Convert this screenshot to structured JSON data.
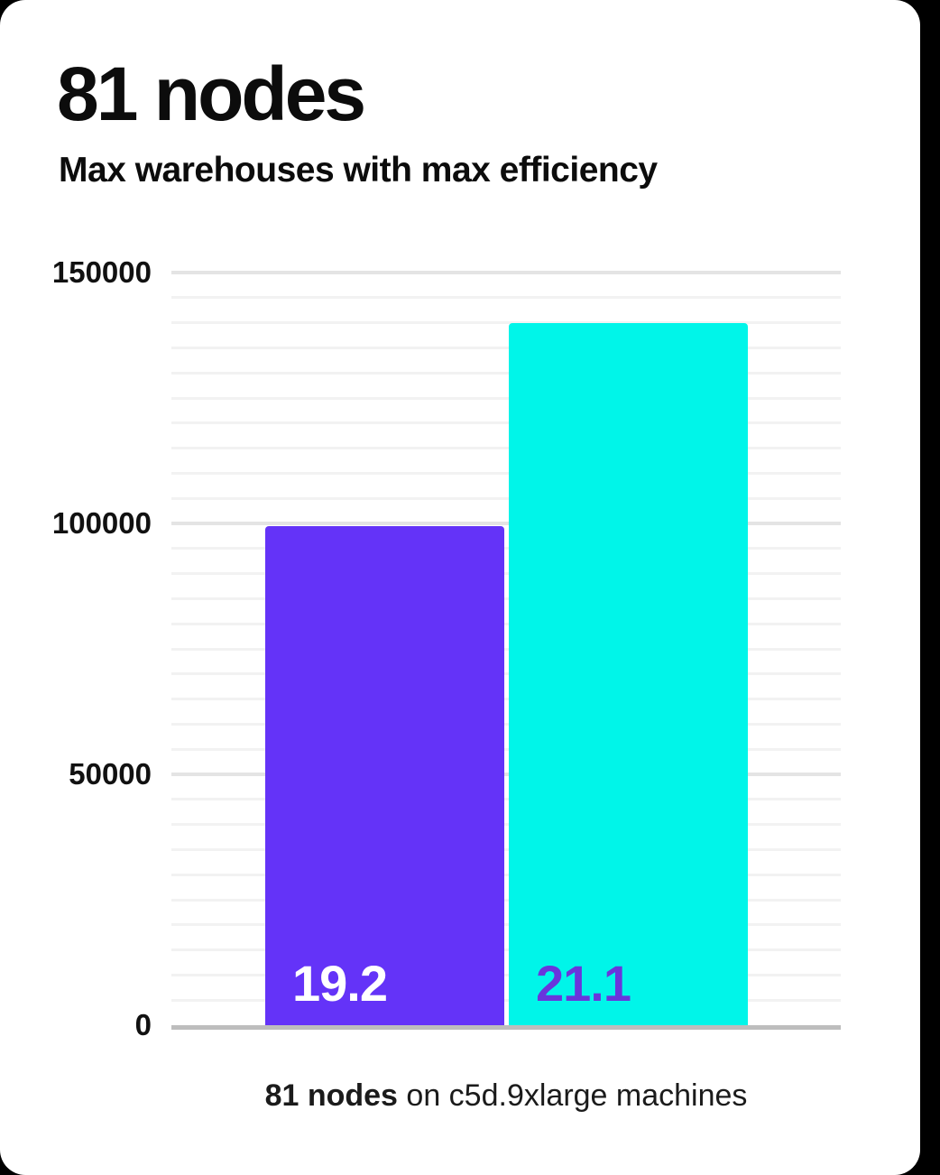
{
  "page": {
    "background_color": "#000000",
    "card_color": "#ffffff"
  },
  "header": {
    "title": "81 nodes",
    "subtitle": "Max warehouses with max efficiency"
  },
  "caption": {
    "bold": "81 nodes",
    "rest": " on c5d.9xlarge machines"
  },
  "chart_data": {
    "type": "bar",
    "title": "81 nodes",
    "subtitle": "Max warehouses with max efficiency",
    "categories": [
      "19.2",
      "21.1"
    ],
    "values": [
      99500,
      140000
    ],
    "bar_labels": [
      "19.2",
      "21.1"
    ],
    "bar_colors": [
      "#6433F8",
      "#00F5E9"
    ],
    "bar_label_colors": [
      "#ffffff",
      "#6935DC"
    ],
    "xlabel": "",
    "ylabel": "",
    "ylim": [
      0,
      150000
    ],
    "yticks": [
      150000,
      100000,
      50000,
      0
    ],
    "minor_grid_step": 5000,
    "major_grid_step": 50000,
    "grid": true,
    "legend": false,
    "caption": "81 nodes on c5d.9xlarge machines",
    "colors": {
      "minor_gridline": "#f2f2f2",
      "major_gridline": "#e4e4e4",
      "axis_line": "#bdbdbd",
      "text": "#0c0c0c"
    }
  }
}
